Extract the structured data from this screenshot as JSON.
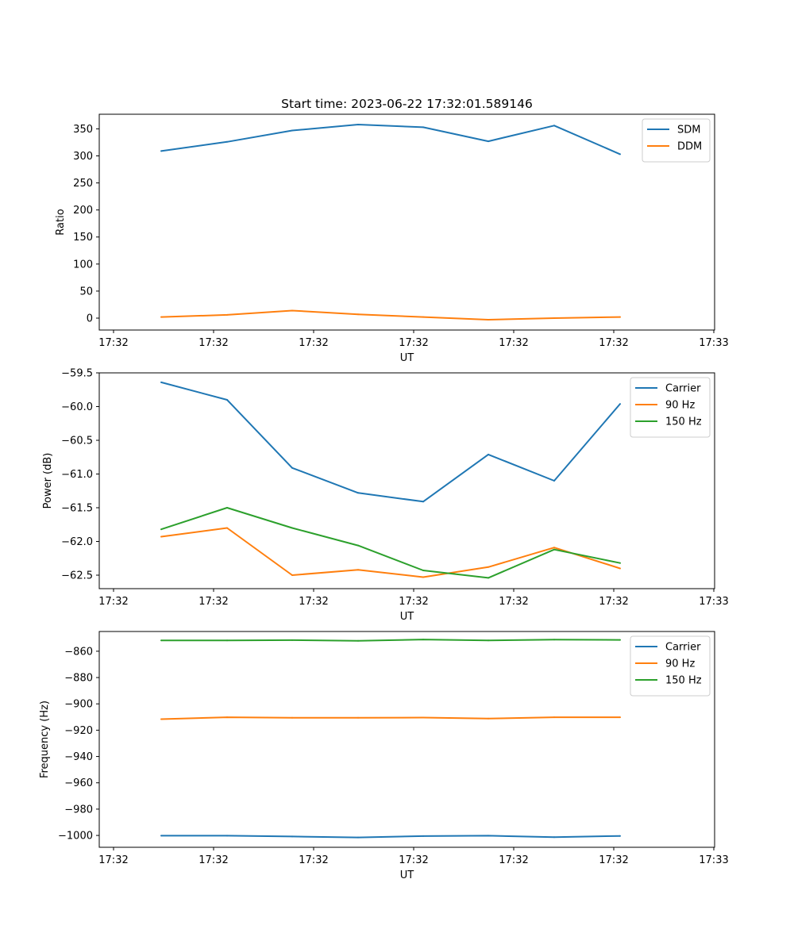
{
  "chart_data": [
    {
      "type": "line",
      "title": "Start time: 2023-06-22 17:32:01.589146",
      "xlabel": "UT",
      "ylabel": "Ratio",
      "x_tick_labels": [
        "17:32",
        "17:32",
        "17:32",
        "17:32",
        "17:32",
        "17:32",
        "17:33"
      ],
      "y_ticks": [
        0,
        50,
        100,
        150,
        200,
        250,
        300,
        350
      ],
      "ylim": [
        -22,
        377
      ],
      "legend_position": "upper-right",
      "grid": false,
      "series": [
        {
          "name": "SDM",
          "color": "#1f77b4",
          "values": [
            309,
            326,
            347,
            358,
            353,
            327,
            356,
            303
          ]
        },
        {
          "name": "DDM",
          "color": "#ff7f0e",
          "values": [
            2,
            6,
            14,
            7,
            2,
            -3,
            0,
            2
          ]
        }
      ]
    },
    {
      "type": "line",
      "xlabel": "UT",
      "ylabel": "Power (dB)",
      "x_tick_labels": [
        "17:32",
        "17:32",
        "17:32",
        "17:32",
        "17:32",
        "17:32",
        "17:33"
      ],
      "y_ticks": [
        -62.5,
        -62.0,
        -61.5,
        -61.0,
        -60.5,
        -60.0,
        -59.5
      ],
      "y_tick_labels": [
        "−62.5",
        "−62.0",
        "−61.5",
        "−61.0",
        "−60.5",
        "−60.0",
        "−59.5"
      ],
      "ylim": [
        -62.7,
        -59.5
      ],
      "legend_position": "upper-right",
      "grid": false,
      "series": [
        {
          "name": "Carrier",
          "color": "#1f77b4",
          "values": [
            -59.64,
            -59.9,
            -60.91,
            -61.28,
            -61.41,
            -60.71,
            -61.1,
            -59.96
          ]
        },
        {
          "name": "90 Hz",
          "color": "#ff7f0e",
          "values": [
            -61.93,
            -61.8,
            -62.5,
            -62.42,
            -62.53,
            -62.38,
            -62.09,
            -62.4
          ]
        },
        {
          "name": "150 Hz",
          "color": "#2ca02c",
          "values": [
            -61.82,
            -61.5,
            -61.8,
            -62.06,
            -62.43,
            -62.54,
            -62.12,
            -62.32
          ]
        }
      ]
    },
    {
      "type": "line",
      "xlabel": "UT",
      "ylabel": "Frequency (Hz)",
      "x_tick_labels": [
        "17:32",
        "17:32",
        "17:32",
        "17:32",
        "17:32",
        "17:32",
        "17:33"
      ],
      "y_ticks": [
        -1000,
        -980,
        -960,
        -940,
        -920,
        -900,
        -880,
        -860
      ],
      "y_tick_labels": [
        "−1000",
        "−980",
        "−960",
        "−940",
        "−920",
        "−900",
        "−880",
        "−860"
      ],
      "ylim": [
        -1009,
        -845
      ],
      "legend_position": "upper-right",
      "grid": false,
      "series": [
        {
          "name": "Carrier",
          "color": "#1f77b4",
          "values": [
            -1000.2,
            -1000.2,
            -1000.8,
            -1001.5,
            -1000.5,
            -1000.2,
            -1001.3,
            -1000.4
          ]
        },
        {
          "name": "90 Hz",
          "color": "#ff7f0e",
          "values": [
            -911.6,
            -910.2,
            -910.6,
            -910.6,
            -910.4,
            -911.2,
            -910.2,
            -910.2
          ]
        },
        {
          "name": "150 Hz",
          "color": "#2ca02c",
          "values": [
            -851.8,
            -851.8,
            -851.6,
            -852.1,
            -851.1,
            -851.8,
            -851.2,
            -851.4
          ]
        }
      ]
    }
  ]
}
